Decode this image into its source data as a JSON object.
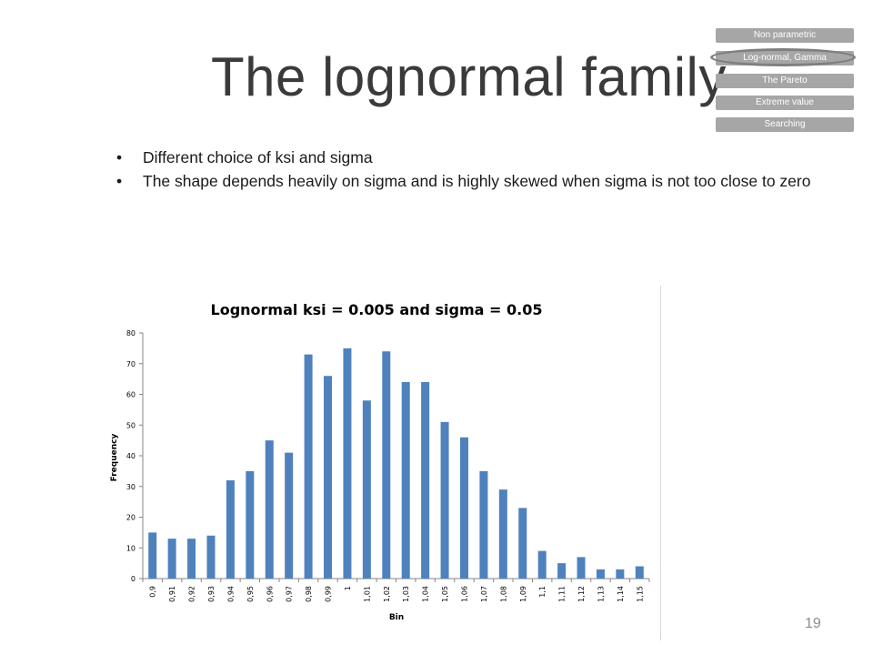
{
  "slide": {
    "title": "The lognormal family",
    "page_number": "19"
  },
  "nav": {
    "items": [
      {
        "label": "Non parametric"
      },
      {
        "label": "Log-normal, Gamma",
        "current": true
      },
      {
        "label": "The Pareto"
      },
      {
        "label": "Extreme value"
      },
      {
        "label": "Searching"
      }
    ]
  },
  "bullets": [
    "Different choice of ksi and sigma",
    "The shape depends heavily on sigma and is highly skewed when sigma is not too close to zero"
  ],
  "colors": {
    "bar": "#4f81bd",
    "nav_bg": "#a6a6a6",
    "title_text": "#3a3a3a"
  },
  "chart_data": {
    "type": "bar",
    "title": "Lognormal ksi = 0.005 and sigma = 0.05",
    "xlabel": "Bin",
    "ylabel": "Frequency",
    "ylim": [
      0,
      80
    ],
    "yticks": [
      0,
      10,
      20,
      30,
      40,
      50,
      60,
      70,
      80
    ],
    "grid": false,
    "legend": "none",
    "categories": [
      "0,9",
      "0,91",
      "0,92",
      "0,93",
      "0,94",
      "0,95",
      "0,96",
      "0,97",
      "0,98",
      "0,99",
      "1",
      "1,01",
      "1,02",
      "1,03",
      "1,04",
      "1,05",
      "1,06",
      "1,07",
      "1,08",
      "1,09",
      "1,1",
      "1,11",
      "1,12",
      "1,13",
      "1,14",
      "1,15"
    ],
    "values": [
      15,
      13,
      13,
      14,
      32,
      35,
      45,
      41,
      73,
      66,
      75,
      58,
      74,
      64,
      64,
      51,
      46,
      35,
      29,
      23,
      9,
      5,
      7,
      3,
      3,
      4
    ]
  }
}
